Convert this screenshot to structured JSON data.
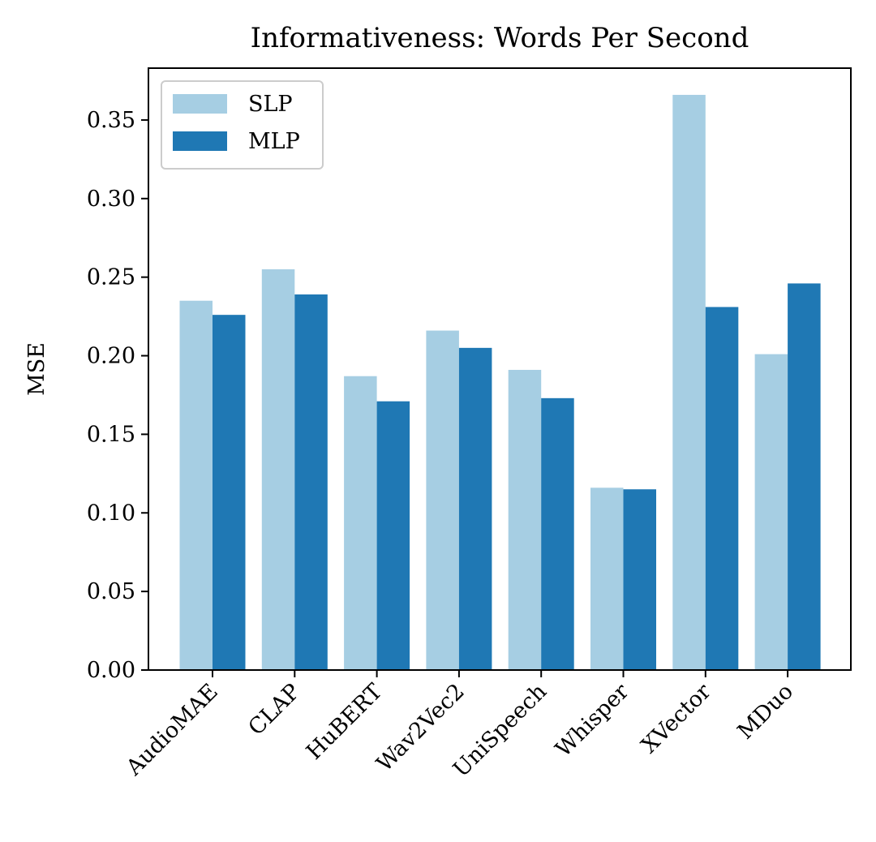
{
  "chart_data": {
    "type": "bar",
    "title": "Informativeness: Words Per Second",
    "xlabel": "",
    "ylabel": "MSE",
    "categories": [
      "AudioMAE",
      "CLAP",
      "HuBERT",
      "Wav2Vec2",
      "UniSpeech",
      "Whisper",
      "XVector",
      "MDuo"
    ],
    "series": [
      {
        "name": "SLP",
        "color": "#a6cee3",
        "values": [
          0.235,
          0.255,
          0.187,
          0.216,
          0.191,
          0.116,
          0.366,
          0.201
        ]
      },
      {
        "name": "MLP",
        "color": "#1f78b4",
        "values": [
          0.226,
          0.239,
          0.171,
          0.205,
          0.173,
          0.115,
          0.231,
          0.246
        ]
      }
    ],
    "ylim": [
      0,
      0.383
    ],
    "yticks": [
      "0.00",
      "0.05",
      "0.10",
      "0.15",
      "0.20",
      "0.25",
      "0.30",
      "0.35"
    ],
    "ytick_values": [
      0,
      0.05,
      0.1,
      0.15,
      0.2,
      0.25,
      0.3,
      0.35
    ],
    "xtick_rotation": 45,
    "legend_position": "top-left",
    "grid": false
  }
}
